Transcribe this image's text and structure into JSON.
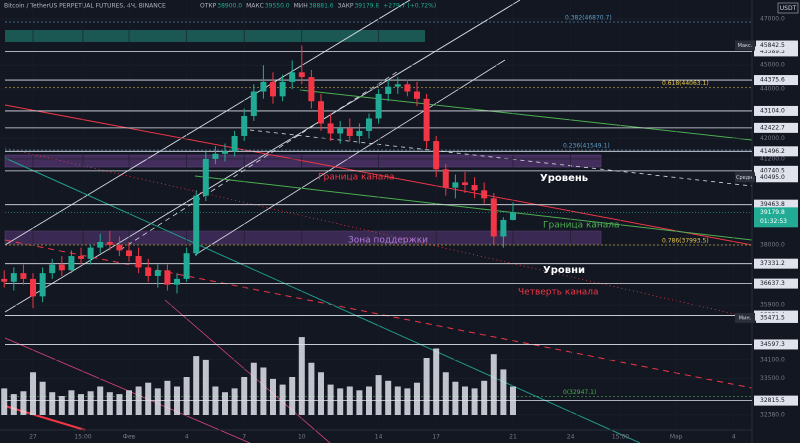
{
  "chart_data": {
    "type": "candlestick",
    "title": "Bitcoin / TetherUS PERPETUAL FUTURES, 4Ч, BINANCE",
    "ohlc_labels": [
      "ОТКР",
      "МАКС",
      "МИН",
      "ЗАКР"
    ],
    "ohlc_values": [
      "38900.0",
      "39550.0",
      "38881.6",
      "39179.8"
    ],
    "change": "+279.7 (+0.72%)",
    "currency": "USDT",
    "log_scale": true,
    "up_color": "#22ab94",
    "down_color": "#f23645",
    "ylim": [
      31920,
      47850
    ],
    "xlim": [
      -1.72,
      37.45
    ],
    "yticks": [
      {
        "value": 47000,
        "label": "47000.0"
      },
      {
        "value": 45000,
        "label": "45000.0"
      },
      {
        "value": 44000,
        "label": "44000.0"
      },
      {
        "value": 42000,
        "label": "42000.0"
      },
      {
        "value": 41200,
        "label": "41200.0"
      },
      {
        "value": 38000,
        "label": "38000.0"
      },
      {
        "value": 35900,
        "label": "35900.0"
      },
      {
        "value": 34100,
        "label": "34100.0"
      },
      {
        "value": 33500,
        "label": "33500.0"
      },
      {
        "value": 32380,
        "label": "32380.0"
      }
    ],
    "xticks": [
      {
        "value": 0,
        "label": "27"
      },
      {
        "value": 2.6,
        "label": "15:00"
      },
      {
        "value": 5,
        "label": "Фев"
      },
      {
        "value": 8,
        "label": "4"
      },
      {
        "value": 11,
        "label": "7"
      },
      {
        "value": 14,
        "label": "10"
      },
      {
        "value": 18,
        "label": "14"
      },
      {
        "value": 21,
        "label": "17"
      },
      {
        "value": 25,
        "label": "21"
      },
      {
        "value": 28,
        "label": "24"
      },
      {
        "value": 30.6,
        "label": "15:00"
      },
      {
        "value": 33.5,
        "label": "Мар"
      },
      {
        "value": 36.5,
        "label": "4"
      }
    ],
    "x": [
      -1.5,
      -1,
      -0.5,
      0,
      0.5,
      1,
      1.5,
      2,
      2.5,
      3,
      3.5,
      4,
      4.5,
      5,
      5.5,
      6,
      6.5,
      7,
      7.5,
      8,
      8.5,
      9,
      9.5,
      10,
      10.5,
      11,
      11.5,
      12,
      12.5,
      13,
      13.5,
      14,
      14.5,
      15,
      15.5,
      16,
      16.5,
      17,
      17.5,
      18,
      18.5,
      19,
      19.5,
      20,
      20.5,
      21,
      21.5,
      22,
      22.5,
      23,
      23.5,
      24,
      24.5,
      25
    ],
    "open": [
      36800,
      36700,
      37000,
      36800,
      36200,
      37000,
      37300,
      37100,
      37600,
      37500,
      37900,
      38100,
      38000,
      37800,
      37600,
      37200,
      36900,
      37100,
      36600,
      36800,
      37700,
      39800,
      41200,
      41400,
      41500,
      42100,
      42900,
      43900,
      44300,
      43700,
      44300,
      44700,
      44500,
      43500,
      42600,
      42200,
      42400,
      42100,
      42300,
      42800,
      43800,
      44100,
      44200,
      43900,
      43600,
      41900,
      40800,
      40100,
      40300,
      40200,
      40000,
      39700,
      38300,
      38900
    ],
    "high": [
      37100,
      37200,
      37300,
      37000,
      37200,
      37500,
      37600,
      37800,
      37900,
      38000,
      38400,
      38500,
      38300,
      38100,
      37900,
      37500,
      37300,
      37300,
      37000,
      37900,
      40000,
      41500,
      41700,
      41800,
      42300,
      43200,
      44200,
      45000,
      44700,
      44600,
      45200,
      45842.5,
      44800,
      43800,
      43000,
      42700,
      42800,
      42600,
      43000,
      44000,
      44400,
      44500,
      44400,
      44300,
      43800,
      42100,
      41000,
      40600,
      40700,
      40500,
      40300,
      39900,
      39000,
      39550
    ],
    "low": [
      36500,
      36400,
      36600,
      35800,
      36000,
      36800,
      36900,
      37000,
      37300,
      37300,
      37700,
      37800,
      37600,
      37400,
      37000,
      36700,
      36500,
      36400,
      36300,
      36700,
      37600,
      39600,
      41000,
      41100,
      41300,
      41900,
      42700,
      43600,
      43400,
      43500,
      44000,
      44200,
      43200,
      42300,
      41900,
      41800,
      41900,
      41800,
      42000,
      42600,
      43500,
      43800,
      43700,
      43300,
      41600,
      40500,
      39800,
      39700,
      39900,
      39700,
      39500,
      38000,
      37900,
      38881.6
    ],
    "close": [
      36700,
      37000,
      36800,
      36200,
      37000,
      37300,
      37100,
      37600,
      37500,
      37900,
      38100,
      38000,
      37800,
      37600,
      37200,
      36900,
      37100,
      36600,
      36800,
      37700,
      39800,
      41200,
      41400,
      41500,
      42100,
      42900,
      43900,
      44300,
      43700,
      44300,
      44700,
      44500,
      43500,
      42600,
      42200,
      42400,
      42100,
      42300,
      42800,
      43800,
      44100,
      44200,
      43900,
      43600,
      41900,
      40800,
      40100,
      40300,
      40200,
      40000,
      39700,
      38300,
      38900,
      39179.8
    ],
    "volume": [
      28,
      22,
      25,
      45,
      35,
      24,
      20,
      26,
      22,
      25,
      30,
      24,
      22,
      26,
      30,
      34,
      28,
      36,
      30,
      40,
      62,
      58,
      30,
      24,
      28,
      40,
      55,
      50,
      38,
      32,
      40,
      82,
      55,
      45,
      32,
      28,
      30,
      26,
      30,
      42,
      36,
      30,
      28,
      34,
      60,
      70,
      45,
      35,
      30,
      28,
      36,
      64,
      48,
      30
    ],
    "volume_lim": [
      0,
      100
    ],
    "levels": [
      {
        "value": 45589.5,
        "label": "45589.5"
      },
      {
        "value": 44375.6,
        "label": "44375.6"
      },
      {
        "value": 43104.0,
        "label": "43104.0"
      },
      {
        "value": 42422.7,
        "label": "42422.7"
      },
      {
        "value": 41496.2,
        "label": "41496.2"
      },
      {
        "value": 40740.5,
        "label": "40740.5"
      },
      {
        "value": 39463.8,
        "label": "39463.8"
      },
      {
        "value": 37331.2,
        "label": "37331.2"
      },
      {
        "value": 36637.3,
        "label": "36637.3"
      },
      {
        "value": 35551.4,
        "label": "35551.4"
      },
      {
        "value": 34597.3,
        "label": "34597.3"
      },
      {
        "value": 32815.5,
        "label": "32815.5"
      }
    ],
    "badges": [
      {
        "name": "Макс.",
        "value": 45842.5,
        "label": "45842.5"
      },
      {
        "name": "Средн.",
        "value": 40495.0,
        "label": "40495.0"
      },
      {
        "name": "Мин.",
        "value": 35471.5,
        "label": "35471.5"
      }
    ],
    "current": {
      "value": 39179.8,
      "label": "39179.8",
      "timer": "01:32:53"
    },
    "fib_levels": [
      {
        "value": 46870.7,
        "label": "0.382(46870.7)",
        "color": "#5d9fc7"
      },
      {
        "value": 44063.1,
        "label": "0.618(44063.1)",
        "color": "#e6c84a"
      },
      {
        "value": 41549.1,
        "label": "0.236(41549.1)",
        "color": "#5d9fc7"
      },
      {
        "value": 37993.5,
        "label": "0.786(37993.5)",
        "color": "#e6c84a"
      },
      {
        "value": 32947.1,
        "label": "0(32947.1)",
        "color": "#4caf50"
      }
    ],
    "annotations": [
      {
        "text": "Граница канала",
        "color": "#f23645"
      },
      {
        "text": "Уровень",
        "color": "#ffffff"
      },
      {
        "text": "Граница канала",
        "color": "#4caf50"
      },
      {
        "text": "Зона поддержки",
        "color": "#b07ad8"
      },
      {
        "text": "Уровни",
        "color": "#ffffff"
      },
      {
        "text": "Четверть канала",
        "color": "#f23645"
      }
    ]
  }
}
